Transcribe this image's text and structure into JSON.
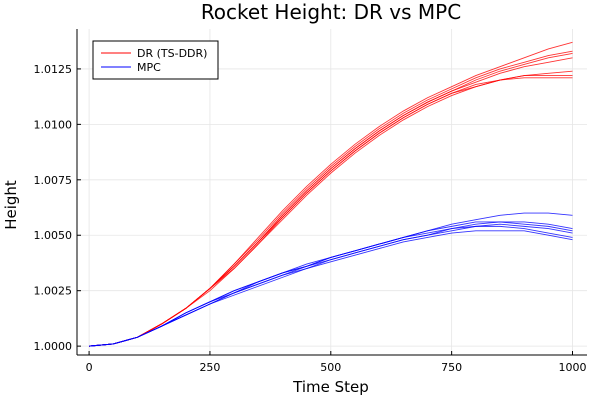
{
  "chart_data": {
    "type": "line",
    "title": "Rocket Height: DR vs MPC",
    "xlabel": "Time Step",
    "ylabel": "Height",
    "xlim": [
      -25,
      1030
    ],
    "ylim": [
      0.9996,
      1.0143
    ],
    "xticks": [
      0,
      250,
      500,
      750,
      1000
    ],
    "yticks": [
      1.0,
      1.0025,
      1.005,
      1.0075,
      1.01,
      1.0125
    ],
    "xtick_labels": [
      "0",
      "250",
      "500",
      "750",
      "1000"
    ],
    "ytick_labels": [
      "1.0000",
      "1.0025",
      "1.0050",
      "1.0075",
      "1.0100",
      "1.0125"
    ],
    "grid": true,
    "legend_position": "top-left",
    "legend": [
      {
        "label": "DR (TS-DDR)",
        "color": "#ff0000"
      },
      {
        "label": "MPC",
        "color": "#0000ff"
      }
    ],
    "colors": {
      "dr": "#ff0000",
      "mpc": "#0000ff"
    },
    "x": [
      0,
      50,
      100,
      150,
      200,
      250,
      300,
      350,
      400,
      450,
      500,
      550,
      600,
      650,
      700,
      750,
      800,
      850,
      900,
      950,
      1000
    ],
    "series": [
      {
        "group": "dr",
        "values": [
          1.0,
          1.0001,
          1.0004,
          1.001,
          1.0017,
          1.0026,
          1.0037,
          1.0049,
          1.0061,
          1.0072,
          1.0082,
          1.0091,
          1.0099,
          1.0106,
          1.0112,
          1.0117,
          1.0122,
          1.0126,
          1.013,
          1.0134,
          1.0137
        ]
      },
      {
        "group": "dr",
        "values": [
          1.0,
          1.0001,
          1.0004,
          1.001,
          1.0017,
          1.0026,
          1.0037,
          1.0048,
          1.006,
          1.0071,
          1.0081,
          1.009,
          1.0098,
          1.0105,
          1.0111,
          1.0116,
          1.0121,
          1.0125,
          1.0128,
          1.0131,
          1.0133
        ]
      },
      {
        "group": "dr",
        "values": [
          1.0,
          1.0001,
          1.0004,
          1.001,
          1.0017,
          1.0026,
          1.0036,
          1.0047,
          1.0059,
          1.007,
          1.008,
          1.0089,
          1.0097,
          1.0104,
          1.011,
          1.0115,
          1.012,
          1.0124,
          1.0127,
          1.013,
          1.0132
        ]
      },
      {
        "group": "dr",
        "values": [
          1.0,
          1.0001,
          1.0004,
          1.001,
          1.0017,
          1.0026,
          1.0036,
          1.0047,
          1.0059,
          1.007,
          1.008,
          1.0089,
          1.0097,
          1.0104,
          1.011,
          1.0115,
          1.0119,
          1.0123,
          1.0126,
          1.0128,
          1.013
        ]
      },
      {
        "group": "dr",
        "values": [
          1.0,
          1.0001,
          1.0004,
          1.001,
          1.0017,
          1.0026,
          1.0036,
          1.0047,
          1.0058,
          1.0069,
          1.0079,
          1.0088,
          1.0096,
          1.0103,
          1.0109,
          1.0114,
          1.0117,
          1.012,
          1.0122,
          1.0123,
          1.0124
        ]
      },
      {
        "group": "dr",
        "values": [
          1.0,
          1.0001,
          1.0004,
          1.001,
          1.0017,
          1.0026,
          1.0035,
          1.0046,
          1.0058,
          1.0069,
          1.0079,
          1.0088,
          1.0096,
          1.0103,
          1.0109,
          1.0114,
          1.0118,
          1.012,
          1.0122,
          1.0122,
          1.0122
        ]
      },
      {
        "group": "dr",
        "values": [
          1.0,
          1.0001,
          1.0004,
          1.001,
          1.0017,
          1.0025,
          1.0035,
          1.0046,
          1.0057,
          1.0068,
          1.0078,
          1.0087,
          1.0095,
          1.0102,
          1.0108,
          1.0113,
          1.0117,
          1.012,
          1.0121,
          1.0121,
          1.0121
        ]
      },
      {
        "group": "mpc",
        "values": [
          1.0,
          1.0001,
          1.0004,
          1.0009,
          1.0015,
          1.002,
          1.0025,
          1.0029,
          1.0033,
          1.0037,
          1.004,
          1.0043,
          1.0046,
          1.0049,
          1.0052,
          1.0055,
          1.0057,
          1.0059,
          1.006,
          1.006,
          1.0059
        ]
      },
      {
        "group": "mpc",
        "values": [
          1.0,
          1.0001,
          1.0004,
          1.0009,
          1.0015,
          1.002,
          1.0025,
          1.0029,
          1.0033,
          1.0036,
          1.004,
          1.0043,
          1.0046,
          1.0049,
          1.0052,
          1.0054,
          1.0056,
          1.0056,
          1.0056,
          1.0055,
          1.0053
        ]
      },
      {
        "group": "mpc",
        "values": [
          1.0,
          1.0001,
          1.0004,
          1.0009,
          1.0015,
          1.002,
          1.0024,
          1.0029,
          1.0033,
          1.0036,
          1.004,
          1.0043,
          1.0046,
          1.0049,
          1.0051,
          1.0053,
          1.0055,
          1.0056,
          1.0055,
          1.0054,
          1.0052
        ]
      },
      {
        "group": "mpc",
        "values": [
          1.0,
          1.0001,
          1.0004,
          1.0009,
          1.0014,
          1.0019,
          1.0024,
          1.0028,
          1.0032,
          1.0036,
          1.0039,
          1.0042,
          1.0045,
          1.0048,
          1.005,
          1.0053,
          1.0054,
          1.0055,
          1.0054,
          1.0053,
          1.0051
        ]
      },
      {
        "group": "mpc",
        "values": [
          1.0,
          1.0001,
          1.0004,
          1.0009,
          1.0014,
          1.0019,
          1.0024,
          1.0028,
          1.0032,
          1.0035,
          1.0039,
          1.0042,
          1.0045,
          1.0048,
          1.005,
          1.0052,
          1.0054,
          1.0054,
          1.0053,
          1.0051,
          1.0049
        ]
      },
      {
        "group": "mpc",
        "values": [
          1.0,
          1.0001,
          1.0004,
          1.0009,
          1.0014,
          1.0019,
          1.0023,
          1.0027,
          1.0031,
          1.0035,
          1.0038,
          1.0041,
          1.0044,
          1.0047,
          1.0049,
          1.0051,
          1.0052,
          1.0052,
          1.0052,
          1.005,
          1.0048
        ]
      }
    ]
  }
}
